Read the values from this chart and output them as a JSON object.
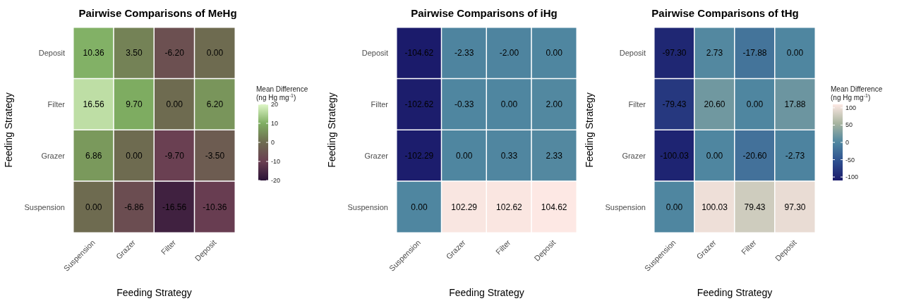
{
  "chart_data": [
    {
      "type": "heatmap",
      "title": "Pairwise Comparisons of MeHg",
      "xlabel": "Feeding Strategy",
      "ylabel": "Feeding Strategy",
      "clabel": "Mean Difference\n(ng Hg mg$^{-1}$)",
      "categories": [
        "Suspension",
        "Grazer",
        "Filter",
        "Deposit"
      ],
      "y_categories": [
        "Deposit",
        "Filter",
        "Grazer",
        "Suspension"
      ],
      "cells": [
        [
          10.36,
          3.5,
          -6.2,
          0.0
        ],
        [
          16.56,
          9.7,
          0.0,
          6.2
        ],
        [
          6.86,
          0.0,
          -9.7,
          -3.5
        ],
        [
          0.0,
          -6.86,
          -16.56,
          -10.36
        ]
      ],
      "cell_labels": [
        [
          "10.36",
          "3.50",
          "-6.20",
          "0.00"
        ],
        [
          "16.56",
          "9.70",
          "0.00",
          "6.20"
        ],
        [
          "6.86",
          "0.00",
          "-9.70",
          "-3.50"
        ],
        [
          "0.00",
          "-6.86",
          "-16.56",
          "-10.36"
        ]
      ],
      "clim": [
        -20,
        20
      ],
      "cticks": [
        -20,
        -10,
        0,
        10,
        20
      ]
    },
    {
      "type": "heatmap",
      "title": "Pairwise Comparisons of iHg",
      "xlabel": "Feeding Strategy",
      "ylabel": "Feeding Strategy",
      "categories": [
        "Suspension",
        "Grazer",
        "Filter",
        "Deposit"
      ],
      "y_categories": [
        "Deposit",
        "Filter",
        "Grazer",
        "Suspension"
      ],
      "cells": [
        [
          -104.62,
          -2.33,
          -2.0,
          0.0
        ],
        [
          -102.62,
          -0.33,
          0.0,
          2.0
        ],
        [
          -102.29,
          0.0,
          0.33,
          2.33
        ],
        [
          0.0,
          102.29,
          102.62,
          104.62
        ]
      ],
      "cell_labels": [
        [
          "-104.62",
          "-2.33",
          "-2.00",
          "0.00"
        ],
        [
          "-102.62",
          "-0.33",
          "0.00",
          "2.00"
        ],
        [
          "-102.29",
          "0.00",
          "0.33",
          "2.33"
        ],
        [
          "0.00",
          "102.29",
          "102.62",
          "104.62"
        ]
      ]
    },
    {
      "type": "heatmap",
      "title": "Pairwise Comparisons of tHg",
      "xlabel": "Feeding Strategy",
      "ylabel": "Feeding Strategy",
      "clabel": "Mean Difference\n(ng Hg mg$^{-1}$)",
      "categories": [
        "Suspension",
        "Grazer",
        "Filter",
        "Deposit"
      ],
      "y_categories": [
        "Deposit",
        "Filter",
        "Grazer",
        "Suspension"
      ],
      "cells": [
        [
          -97.3,
          2.73,
          -17.88,
          0.0
        ],
        [
          -79.43,
          20.6,
          0.0,
          17.88
        ],
        [
          -100.03,
          0.0,
          -20.6,
          -2.73
        ],
        [
          0.0,
          100.03,
          79.43,
          97.3
        ]
      ],
      "cell_labels": [
        [
          "-97.30",
          "2.73",
          "-17.88",
          "0.00"
        ],
        [
          "-79.43",
          "20.60",
          "0.00",
          "17.88"
        ],
        [
          "-100.03",
          "0.00",
          "-20.60",
          "-2.73"
        ],
        [
          "0.00",
          "100.03",
          "79.43",
          "97.30"
        ]
      ],
      "clim": [
        -110,
        110
      ],
      "cticks": [
        -100,
        -50,
        0,
        50,
        100
      ]
    }
  ]
}
